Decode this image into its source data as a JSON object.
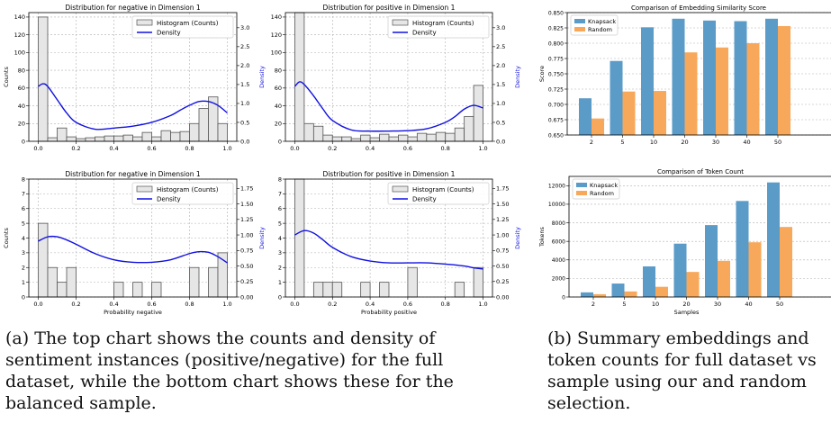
{
  "chart_data": [
    {
      "type": "bar",
      "panel": "hist-top-left",
      "title": "Distribution for negative in Dimension 1",
      "xlabel": "",
      "ylabel": "Counts",
      "y2label": "Density",
      "xlim": [
        -0.05,
        1.05
      ],
      "ylim": [
        0,
        145
      ],
      "y2lim": [
        0,
        3.4
      ],
      "xticks": [
        "0.0",
        "0.2",
        "0.4",
        "0.6",
        "0.8",
        "1.0"
      ],
      "yticks": [
        "0",
        "20",
        "40",
        "60",
        "80",
        "100",
        "120",
        "140"
      ],
      "y2ticks": [
        "0.0",
        "0.5",
        "1.0",
        "1.5",
        "2.0",
        "2.5",
        "3.0"
      ],
      "legend": [
        "Histogram (Counts)",
        "Density"
      ],
      "legend_position": "top-right",
      "bin_width": 0.05,
      "bins_start": 0.0,
      "counts": [
        140,
        4,
        15,
        5,
        3,
        4,
        5,
        6,
        6,
        7,
        5,
        10,
        5,
        12,
        10,
        11,
        20,
        37,
        50,
        20
      ],
      "density_x": [
        0.0,
        0.025,
        0.05,
        0.1,
        0.15,
        0.2,
        0.3,
        0.4,
        0.5,
        0.6,
        0.7,
        0.75,
        0.8,
        0.85,
        0.9,
        0.95,
        1.0
      ],
      "density_y": [
        1.45,
        1.52,
        1.45,
        1.1,
        0.75,
        0.5,
        0.32,
        0.35,
        0.4,
        0.5,
        0.68,
        0.82,
        0.95,
        1.05,
        1.05,
        0.95,
        0.75
      ]
    },
    {
      "type": "bar",
      "panel": "hist-top-right",
      "title": "Distribution for positive in Dimension 1",
      "xlabel": "",
      "ylabel": "",
      "y2label": "Density",
      "xlim": [
        -0.05,
        1.05
      ],
      "ylim": [
        0,
        145
      ],
      "y2lim": [
        0,
        3.4
      ],
      "xticks": [
        "0.0",
        "0.2",
        "0.4",
        "0.6",
        "0.8",
        "1.0"
      ],
      "yticks": [
        "0",
        "20",
        "40",
        "60",
        "80",
        "100",
        "120",
        "140"
      ],
      "y2ticks": [
        "0.0",
        "0.5",
        "1.0",
        "1.5",
        "2.0",
        "2.5",
        "3.0"
      ],
      "legend": [
        "Histogram (Counts)",
        "Density"
      ],
      "legend_position": "top-right",
      "bin_width": 0.05,
      "bins_start": 0.0,
      "counts": [
        145,
        20,
        17,
        7,
        5,
        5,
        3,
        7,
        4,
        8,
        5,
        7,
        5,
        9,
        8,
        10,
        9,
        15,
        28,
        63
      ],
      "density_x": [
        0.0,
        0.025,
        0.05,
        0.1,
        0.15,
        0.2,
        0.3,
        0.4,
        0.5,
        0.6,
        0.7,
        0.8,
        0.85,
        0.9,
        0.95,
        1.0
      ],
      "density_y": [
        1.45,
        1.57,
        1.5,
        1.2,
        0.85,
        0.55,
        0.3,
        0.27,
        0.27,
        0.28,
        0.33,
        0.5,
        0.65,
        0.85,
        0.95,
        0.88
      ]
    },
    {
      "type": "bar",
      "panel": "hist-bottom-left",
      "title": "Distribution for negative in Dimension 1",
      "xlabel": "Probability negative",
      "ylabel": "Counts",
      "y2label": "Density",
      "xlim": [
        -0.05,
        1.05
      ],
      "ylim": [
        0,
        8
      ],
      "y2lim": [
        0,
        1.9
      ],
      "xticks": [
        "0.0",
        "0.2",
        "0.4",
        "0.6",
        "0.8",
        "1.0"
      ],
      "yticks": [
        "0",
        "1",
        "2",
        "3",
        "4",
        "5",
        "6",
        "7",
        "8"
      ],
      "y2ticks": [
        "0.00",
        "0.25",
        "0.50",
        "0.75",
        "1.00",
        "1.25",
        "1.50",
        "1.75"
      ],
      "legend": [
        "Histogram (Counts)",
        "Density"
      ],
      "legend_position": "top-right",
      "bin_width": 0.05,
      "bins_start": 0.0,
      "counts": [
        5,
        2,
        1,
        2,
        0,
        0,
        0,
        0,
        1,
        0,
        1,
        0,
        1,
        0,
        0,
        0,
        2,
        0,
        2,
        3
      ],
      "density_x": [
        0.0,
        0.05,
        0.1,
        0.15,
        0.2,
        0.3,
        0.4,
        0.5,
        0.6,
        0.7,
        0.8,
        0.85,
        0.9,
        0.95,
        1.0
      ],
      "density_y": [
        0.9,
        0.97,
        0.97,
        0.92,
        0.85,
        0.7,
        0.6,
        0.56,
        0.56,
        0.6,
        0.7,
        0.73,
        0.72,
        0.65,
        0.55
      ]
    },
    {
      "type": "bar",
      "panel": "hist-bottom-right",
      "title": "Distribution for positive in Dimension 1",
      "xlabel": "Probability positive",
      "ylabel": "",
      "y2label": "Density",
      "xlim": [
        -0.05,
        1.05
      ],
      "ylim": [
        0,
        8
      ],
      "y2lim": [
        0,
        1.9
      ],
      "xticks": [
        "0.0",
        "0.2",
        "0.4",
        "0.6",
        "0.8",
        "1.0"
      ],
      "yticks": [
        "0",
        "1",
        "2",
        "3",
        "4",
        "5",
        "6",
        "7",
        "8"
      ],
      "y2ticks": [
        "0.00",
        "0.25",
        "0.50",
        "0.75",
        "1.00",
        "1.25",
        "1.50",
        "1.75"
      ],
      "legend": [
        "Histogram (Counts)",
        "Density"
      ],
      "legend_position": "top-right",
      "bin_width": 0.05,
      "bins_start": 0.0,
      "counts": [
        8,
        0,
        1,
        1,
        1,
        0,
        0,
        1,
        0,
        1,
        0,
        0,
        2,
        0,
        0,
        0,
        0,
        1,
        0,
        2
      ],
      "density_x": [
        0.0,
        0.05,
        0.1,
        0.15,
        0.2,
        0.3,
        0.4,
        0.5,
        0.6,
        0.7,
        0.8,
        0.9,
        0.95,
        1.0
      ],
      "density_y": [
        1.0,
        1.07,
        1.03,
        0.92,
        0.8,
        0.65,
        0.58,
        0.55,
        0.55,
        0.55,
        0.53,
        0.5,
        0.47,
        0.45
      ]
    },
    {
      "type": "bar",
      "panel": "similarity",
      "title": "Comparison of Embedding Similarity Score",
      "xlabel": "",
      "ylabel": "Score",
      "categories": [
        "2",
        "5",
        "10",
        "20",
        "30",
        "40",
        "50"
      ],
      "ylim": [
        0.65,
        0.85
      ],
      "yticks": [
        "0.650",
        "0.675",
        "0.700",
        "0.725",
        "0.750",
        "0.775",
        "0.800",
        "0.825",
        "0.850"
      ],
      "legend_position": "top-left",
      "series": [
        {
          "name": "Knapsack",
          "color": "#5b9bc8",
          "values": [
            0.71,
            0.771,
            0.826,
            0.84,
            0.837,
            0.836,
            0.84
          ]
        },
        {
          "name": "Random",
          "color": "#f8a85a",
          "values": [
            0.677,
            0.721,
            0.722,
            0.785,
            0.793,
            0.8,
            0.828
          ]
        }
      ]
    },
    {
      "type": "bar",
      "panel": "tokens",
      "title": "Comparison of Token Count",
      "xlabel": "Samples",
      "ylabel": "Tokens",
      "categories": [
        "2",
        "5",
        "10",
        "20",
        "30",
        "40",
        "50"
      ],
      "ylim": [
        0,
        13000
      ],
      "yticks": [
        "0",
        "2000",
        "4000",
        "6000",
        "8000",
        "10000",
        "12000"
      ],
      "legend_position": "top-left",
      "series": [
        {
          "name": "Knapsack",
          "color": "#5b9bc8",
          "values": [
            500,
            1450,
            3300,
            5750,
            7750,
            10350,
            12350
          ]
        },
        {
          "name": "Random",
          "color": "#f8a85a",
          "values": [
            300,
            600,
            1100,
            2700,
            3900,
            5900,
            7550
          ]
        }
      ]
    }
  ],
  "captions": {
    "a": [
      "(a) The top chart shows the counts and density of",
      "sentiment instances (positive/negative) for the full",
      "dataset, while the bottom chart shows these for the",
      "balanced sample."
    ],
    "b": [
      "(b) Summary embeddings and",
      "token counts for full dataset vs",
      "sample using our and random",
      "selection."
    ]
  },
  "colors": {
    "hist_fill": "#e6e6e6",
    "hist_edge": "#555555",
    "density": "#1010e0",
    "grid": "#b0b0b0"
  }
}
